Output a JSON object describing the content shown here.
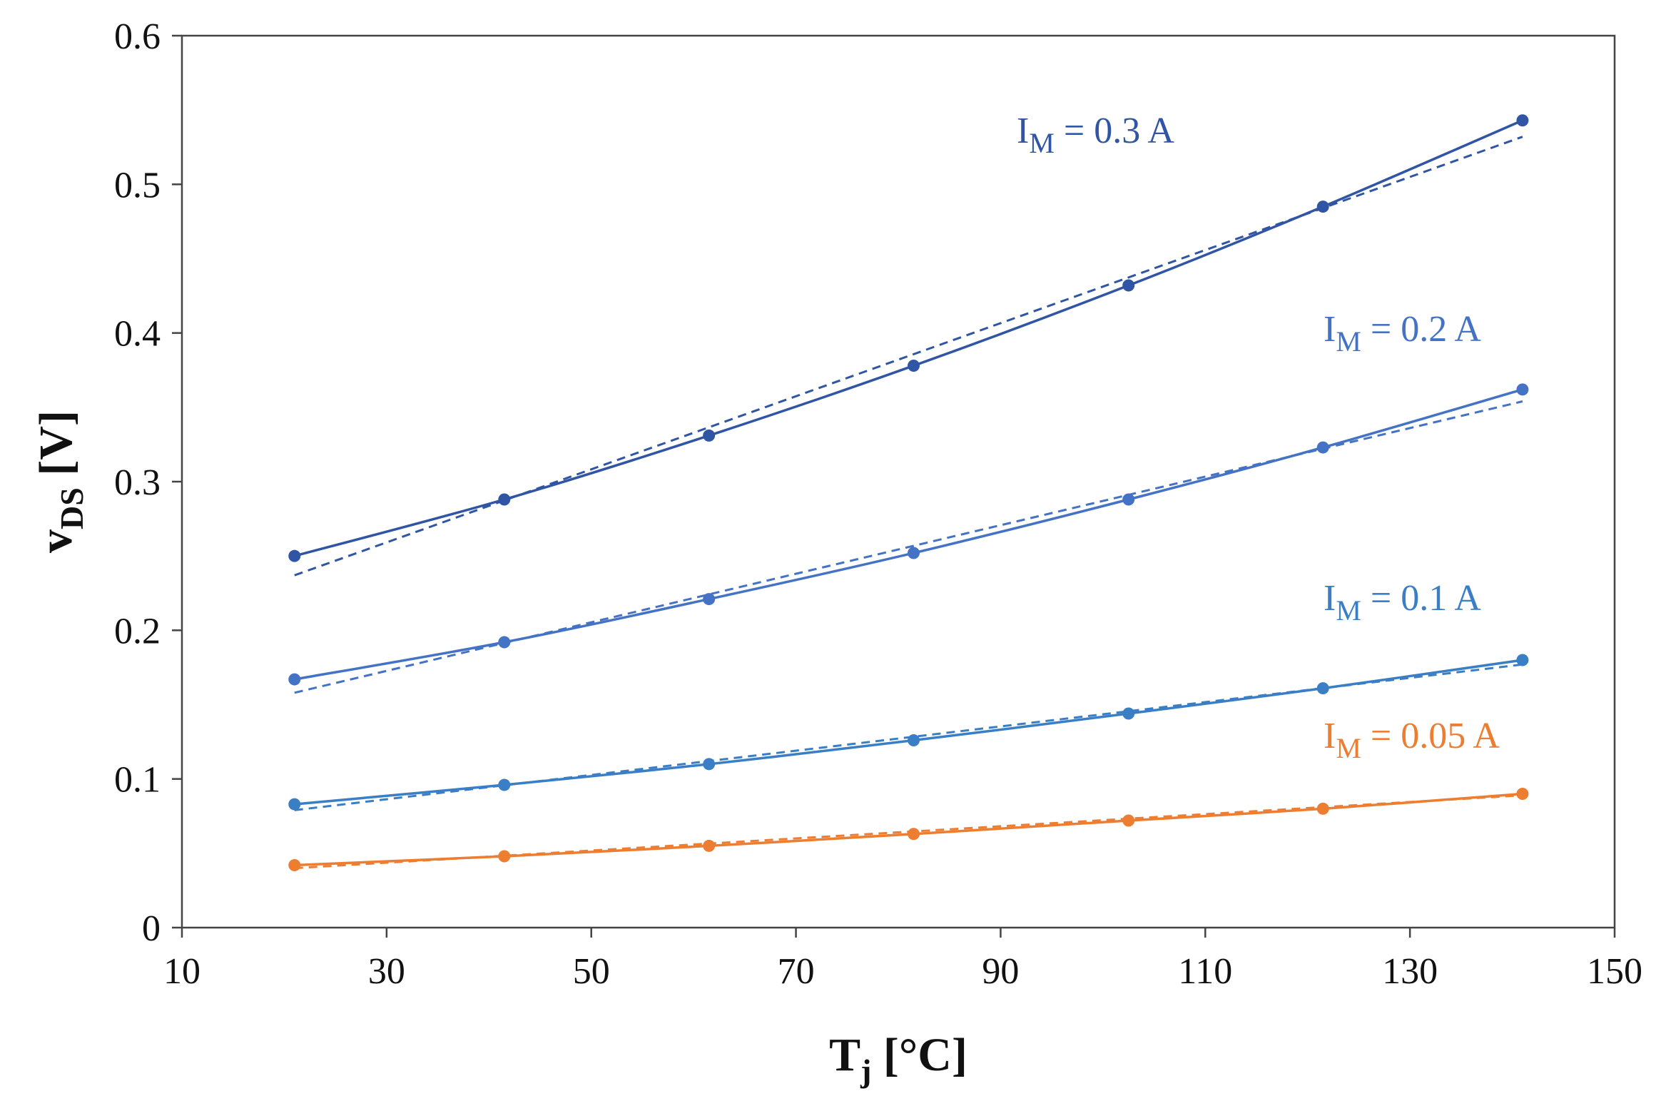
{
  "chart_data": {
    "type": "line",
    "title": "",
    "xlabel": {
      "main": "T",
      "sub": "j",
      "unit": " [°C]"
    },
    "ylabel": {
      "main": "v",
      "sub": "DS",
      "unit": " [V]"
    },
    "xlim": [
      10,
      150
    ],
    "ylim": [
      0,
      0.6
    ],
    "xticks": [
      "10",
      "30",
      "50",
      "70",
      "90",
      "110",
      "130",
      "150"
    ],
    "yticks": [
      "0",
      "0.1",
      "0.2",
      "0.3",
      "0.4",
      "0.5",
      "0.6"
    ],
    "grid": false,
    "series": [
      {
        "name": "IM = 0.3 A",
        "label": {
          "main": "I",
          "sub": "M",
          "rest": " = 0.3 A"
        },
        "color": "#2f55a4",
        "x": [
          21,
          41.5,
          61.5,
          81.5,
          102.5,
          121.5,
          141
        ],
        "y": [
          0.25,
          0.288,
          0.331,
          0.378,
          0.432,
          0.485,
          0.543
        ],
        "fit": [
          0.237,
          0.532
        ]
      },
      {
        "name": "IM = 0.2 A",
        "label": {
          "main": "I",
          "sub": "M",
          "rest": " = 0.2 A"
        },
        "color": "#4472c4",
        "x": [
          21,
          41.5,
          61.5,
          81.5,
          102.5,
          121.5,
          141
        ],
        "y": [
          0.167,
          0.192,
          0.221,
          0.252,
          0.288,
          0.323,
          0.362
        ],
        "fit": [
          0.158,
          0.354
        ]
      },
      {
        "name": "IM = 0.1 A",
        "label": {
          "main": "I",
          "sub": "M",
          "rest": " = 0.1 A"
        },
        "color": "#3a7ec6",
        "x": [
          21,
          41.5,
          61.5,
          81.5,
          102.5,
          121.5,
          141
        ],
        "y": [
          0.083,
          0.096,
          0.11,
          0.126,
          0.144,
          0.161,
          0.18
        ],
        "fit": [
          0.079,
          0.177
        ]
      },
      {
        "name": "IM = 0.05 A",
        "label": {
          "main": "I",
          "sub": "M",
          "rest": " = 0.05 A"
        },
        "color": "#ed7d31",
        "x": [
          21,
          41.5,
          61.5,
          81.5,
          102.5,
          121.5,
          141
        ],
        "y": [
          0.042,
          0.048,
          0.055,
          0.063,
          0.072,
          0.08,
          0.09
        ],
        "fit": [
          0.04,
          0.089
        ]
      }
    ]
  }
}
